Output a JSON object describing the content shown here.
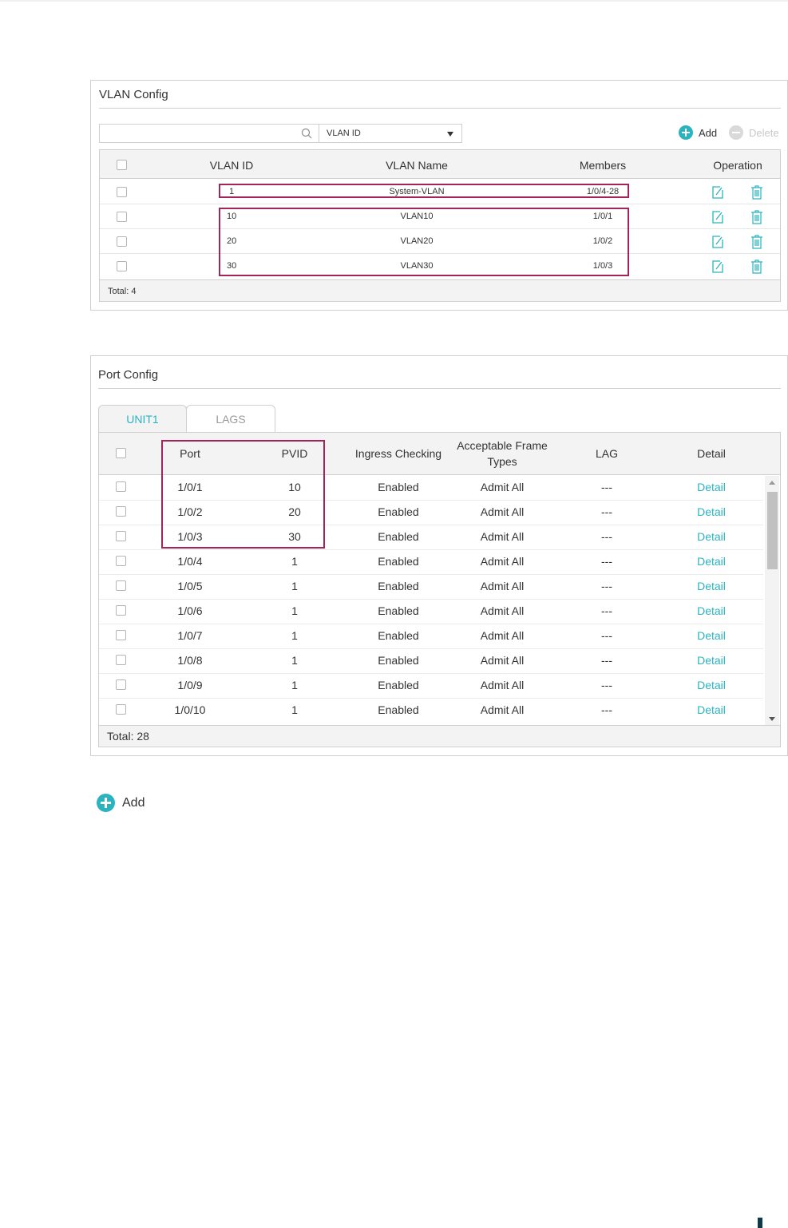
{
  "vlan_config": {
    "title": "VLAN Config",
    "search": {
      "value": "",
      "placeholder": ""
    },
    "filter_select": "VLAN ID",
    "add_label": "Add",
    "delete_label": "Delete",
    "columns": [
      "VLAN ID",
      "VLAN Name",
      "Members",
      "Operation"
    ],
    "rows": [
      {
        "id": "1",
        "name": "System-VLAN",
        "members": "1/0/4-28"
      },
      {
        "id": "10",
        "name": "VLAN10",
        "members": "1/0/1"
      },
      {
        "id": "20",
        "name": "VLAN20",
        "members": "1/0/2"
      },
      {
        "id": "30",
        "name": "VLAN30",
        "members": "1/0/3"
      }
    ],
    "total": "Total: 4"
  },
  "port_config": {
    "title": "Port Config",
    "tabs": [
      "UNIT1",
      "LAGS"
    ],
    "columns": {
      "port": "Port",
      "pvid": "PVID",
      "ingress": "Ingress Checking",
      "frame_line1": "Acceptable Frame",
      "frame_line2": "Types",
      "lag": "LAG",
      "detail": "Detail"
    },
    "rows": [
      {
        "port": "1/0/1",
        "pvid": "10",
        "ingress": "Enabled",
        "frame": "Admit All",
        "lag": "---",
        "detail": "Detail"
      },
      {
        "port": "1/0/2",
        "pvid": "20",
        "ingress": "Enabled",
        "frame": "Admit All",
        "lag": "---",
        "detail": "Detail"
      },
      {
        "port": "1/0/3",
        "pvid": "30",
        "ingress": "Enabled",
        "frame": "Admit All",
        "lag": "---",
        "detail": "Detail"
      },
      {
        "port": "1/0/4",
        "pvid": "1",
        "ingress": "Enabled",
        "frame": "Admit All",
        "lag": "---",
        "detail": "Detail"
      },
      {
        "port": "1/0/5",
        "pvid": "1",
        "ingress": "Enabled",
        "frame": "Admit All",
        "lag": "---",
        "detail": "Detail"
      },
      {
        "port": "1/0/6",
        "pvid": "1",
        "ingress": "Enabled",
        "frame": "Admit All",
        "lag": "---",
        "detail": "Detail"
      },
      {
        "port": "1/0/7",
        "pvid": "1",
        "ingress": "Enabled",
        "frame": "Admit All",
        "lag": "---",
        "detail": "Detail"
      },
      {
        "port": "1/0/8",
        "pvid": "1",
        "ingress": "Enabled",
        "frame": "Admit All",
        "lag": "---",
        "detail": "Detail"
      },
      {
        "port": "1/0/9",
        "pvid": "1",
        "ingress": "Enabled",
        "frame": "Admit All",
        "lag": "---",
        "detail": "Detail"
      },
      {
        "port": "1/0/10",
        "pvid": "1",
        "ingress": "Enabled",
        "frame": "Admit All",
        "lag": "---",
        "detail": "Detail"
      }
    ],
    "total": "Total: 28"
  },
  "bottom_add_label": "Add",
  "colors": {
    "accent": "#2bb3c0",
    "highlight": "#a3245a",
    "header_bg": "#f3f3f3",
    "border": "#cfcfcf"
  },
  "icons": [
    "search-icon",
    "chevron-down-icon",
    "plus-circle-icon",
    "minus-circle-icon",
    "edit-icon",
    "trash-icon"
  ]
}
